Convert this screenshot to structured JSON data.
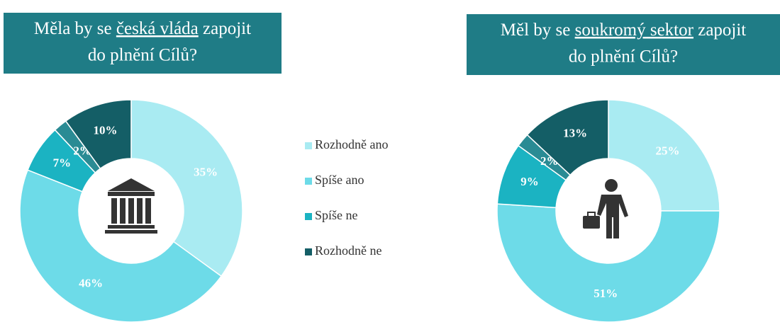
{
  "chart_data": [
    {
      "type": "donut",
      "title": {
        "before": "Měla by se",
        "underlined": "česká vláda",
        "after": "zapojit",
        "line2": "do plnění Cílů?"
      },
      "categories": [
        "Rozhodně ano",
        "Spíše ano",
        "Spíše ne",
        null,
        "Rozhodně ne"
      ],
      "values": [
        35,
        46,
        7,
        2,
        10
      ],
      "value_labels": [
        "35%",
        "46%",
        "7%",
        "2%",
        "10%"
      ],
      "colors": [
        "#a9ebf2",
        "#6ddbe8",
        "#1bb3c2",
        "#2a8b94",
        "#145e66"
      ]
    },
    {
      "type": "donut",
      "title": {
        "before": "Měl by se",
        "underlined": "soukromý sektor",
        "after": "zapojit",
        "line2": "do plnění Cílů?"
      },
      "values": [
        25,
        51,
        9,
        2,
        13
      ],
      "value_labels": [
        "25%",
        "51%",
        "9%",
        "2%",
        "13%"
      ],
      "colors": [
        "#a9ebf2",
        "#6ddbe8",
        "#1bb3c2",
        "#2a8b94",
        "#145e66"
      ]
    }
  ]
}
